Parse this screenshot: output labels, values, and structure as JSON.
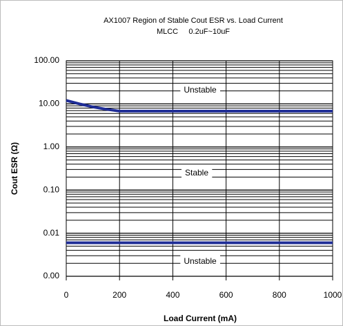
{
  "chart_data": {
    "type": "line",
    "title": "AX1007 Region of Stable Cout ESR vs. Load Current",
    "subtitle": "MLCC     0.2uF~10uF",
    "x_label": "Load Current (mA)",
    "y_label": "Cout ESR (Ω)",
    "series": [
      {
        "x": [
          0,
          50,
          100,
          150,
          200,
          1000
        ],
        "values": [
          12,
          10,
          8.5,
          7.5,
          6.8,
          6.8
        ],
        "color": "#1f2d96"
      },
      {
        "x": [
          0,
          1000
        ],
        "values": [
          0.006,
          0.006
        ],
        "color": "#1f2d96"
      }
    ],
    "annotations": [
      "Unstable",
      "Stable",
      "Unstable"
    ],
    "xlim": [
      0,
      1000
    ],
    "xticks": [
      0,
      200,
      400,
      600,
      800,
      1000
    ],
    "ylim": [
      0.001,
      100
    ],
    "log_y": true,
    "grid": true,
    "minor_grid": true,
    "yticks": [
      {
        "value": 0.001,
        "label": "0.00"
      },
      {
        "value": 0.01,
        "label": "0.01"
      },
      {
        "value": 0.1,
        "label": "0.10"
      },
      {
        "value": 1,
        "label": "1.00"
      },
      {
        "value": 10,
        "label": "10.00"
      },
      {
        "value": 100,
        "label": "100.00"
      }
    ]
  }
}
